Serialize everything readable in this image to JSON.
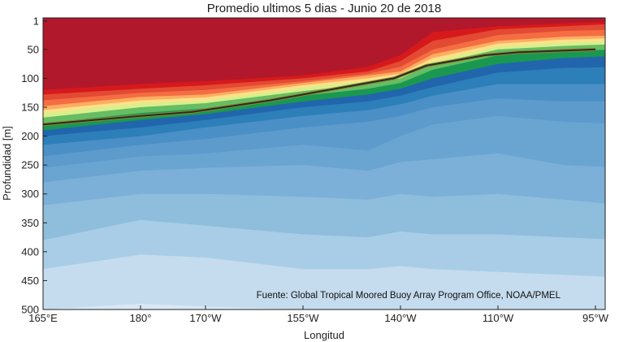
{
  "chart_data": {
    "type": "heatmap",
    "title": "Promedio ultimos 5 dias - Junio 20 de 2018",
    "xlabel": "Longitud",
    "ylabel": "Profundidad [m]",
    "source_note": "Fuente: Global Tropical Moored Buoy Array Program Office, NOAA/PMEL",
    "x_ticks": [
      {
        "value": 165,
        "label": "165°E"
      },
      {
        "value": 180,
        "label": "180°"
      },
      {
        "value": 190,
        "label": "170°W"
      },
      {
        "value": 205,
        "label": "155°W"
      },
      {
        "value": 220,
        "label": "140°W"
      },
      {
        "value": 235,
        "label": "110°W"
      },
      {
        "value": 250,
        "label": "95°W"
      }
    ],
    "y_ticks": [
      1,
      50,
      100,
      150,
      200,
      250,
      300,
      350,
      400,
      450,
      500
    ],
    "xlim": [
      165,
      255
    ],
    "ylim": [
      500,
      1
    ],
    "grid": false,
    "contour_levels": [
      {
        "min_depth_m": 0,
        "color": "#b2182b"
      },
      {
        "min_depth_m": 0,
        "color": "#d7191c"
      },
      {
        "min_depth_m": 0,
        "color": "#e34a33"
      },
      {
        "min_depth_m": 0,
        "color": "#f46d43"
      },
      {
        "min_depth_m": 0,
        "color": "#fdae61"
      },
      {
        "min_depth_m": 0,
        "color": "#fee08b"
      },
      {
        "min_depth_m": 0,
        "color": "#d9ef8b"
      },
      {
        "min_depth_m": 0,
        "color": "#66bd63"
      },
      {
        "min_depth_m": 0,
        "color": "#1a9850"
      },
      {
        "min_depth_m": 0,
        "color": "#2166ac"
      },
      {
        "min_depth_m": 0,
        "color": "#2c7fb8"
      },
      {
        "min_depth_m": 0,
        "color": "#4b8fc7"
      },
      {
        "min_depth_m": 0,
        "color": "#6aa5d2"
      },
      {
        "min_depth_m": 0,
        "color": "#8fbddc"
      },
      {
        "min_depth_m": 0,
        "color": "#a9cde6"
      },
      {
        "min_depth_m": 0,
        "color": "#c5dcee"
      },
      {
        "min_depth_m": 0,
        "color": "#d9e8f5"
      }
    ],
    "thermocline_line": {
      "x": [
        165,
        180,
        188,
        200,
        210,
        219,
        224,
        233,
        238,
        250
      ],
      "depth_m": [
        180,
        165,
        158,
        138,
        118,
        100,
        78,
        60,
        55,
        50
      ],
      "color": "#2b2b2b"
    },
    "bands": [
      {
        "color": "#b2182b",
        "x": [
          165,
          180,
          190,
          205,
          215,
          220,
          225,
          235,
          245,
          255
        ],
        "depth_m": [
          120,
          110,
          105,
          95,
          80,
          60,
          20,
          10,
          5,
          1
        ]
      },
      {
        "color": "#d7191c",
        "x": [
          165,
          180,
          190,
          205,
          215,
          220,
          225,
          235,
          245,
          255
        ],
        "depth_m": [
          128,
          118,
          112,
          100,
          88,
          70,
          35,
          15,
          10,
          5
        ]
      },
      {
        "color": "#e34a33",
        "x": [
          165,
          180,
          190,
          205,
          215,
          220,
          225,
          235,
          245,
          255
        ],
        "depth_m": [
          138,
          125,
          120,
          105,
          92,
          80,
          50,
          25,
          18,
          15
        ]
      },
      {
        "color": "#f46d43",
        "x": [
          165,
          180,
          190,
          205,
          215,
          220,
          225,
          235,
          245,
          255
        ],
        "depth_m": [
          148,
          132,
          128,
          108,
          95,
          88,
          58,
          35,
          28,
          25
        ]
      },
      {
        "color": "#fdae61",
        "x": [
          165,
          180,
          190,
          205,
          215,
          220,
          225,
          235,
          245,
          255
        ],
        "depth_m": [
          155,
          138,
          133,
          112,
          100,
          92,
          65,
          40,
          33,
          30
        ]
      },
      {
        "color": "#fee08b",
        "x": [
          165,
          180,
          190,
          205,
          215,
          220,
          225,
          235,
          245,
          255
        ],
        "depth_m": [
          160,
          143,
          138,
          116,
          104,
          96,
          70,
          45,
          38,
          35
        ]
      },
      {
        "color": "#d9ef8b",
        "x": [
          165,
          180,
          190,
          205,
          215,
          220,
          225,
          235,
          245,
          255
        ],
        "depth_m": [
          168,
          150,
          143,
          122,
          110,
          100,
          75,
          50,
          44,
          40
        ]
      },
      {
        "color": "#66bd63",
        "x": [
          165,
          180,
          190,
          205,
          215,
          220,
          225,
          235,
          245,
          255
        ],
        "depth_m": [
          178,
          160,
          152,
          130,
          118,
          108,
          85,
          60,
          52,
          50
        ]
      },
      {
        "color": "#1a9850",
        "x": [
          165,
          180,
          190,
          205,
          215,
          220,
          225,
          235,
          245,
          255
        ],
        "depth_m": [
          190,
          172,
          162,
          140,
          128,
          118,
          100,
          75,
          65,
          60
        ]
      },
      {
        "color": "#2166ac",
        "x": [
          165,
          180,
          190,
          205,
          215,
          220,
          225,
          235,
          245,
          255
        ],
        "depth_m": [
          200,
          185,
          172,
          150,
          140,
          130,
          115,
          90,
          82,
          80
        ]
      },
      {
        "color": "#2c7fb8",
        "x": [
          165,
          180,
          190,
          205,
          215,
          220,
          225,
          235,
          245,
          255
        ],
        "depth_m": [
          215,
          200,
          185,
          165,
          155,
          145,
          130,
          110,
          110,
          110
        ]
      },
      {
        "color": "#4b8fc7",
        "x": [
          165,
          180,
          190,
          205,
          215,
          220,
          225,
          235,
          245,
          255
        ],
        "depth_m": [
          235,
          215,
          205,
          185,
          175,
          165,
          150,
          135,
          140,
          140
        ]
      },
      {
        "color": "#5d9bcd",
        "x": [
          165,
          180,
          190,
          205,
          215,
          220,
          225,
          235,
          245,
          255
        ],
        "depth_m": [
          255,
          235,
          230,
          215,
          225,
          200,
          180,
          165,
          175,
          180
        ]
      },
      {
        "color": "#6aa5d2",
        "x": [
          165,
          180,
          190,
          205,
          215,
          220,
          225,
          235,
          245,
          255
        ],
        "depth_m": [
          280,
          260,
          255,
          250,
          260,
          245,
          240,
          230,
          250,
          255
        ]
      },
      {
        "color": "#7cb0d8",
        "x": [
          165,
          180,
          190,
          205,
          215,
          220,
          225,
          235,
          245,
          255
        ],
        "depth_m": [
          320,
          300,
          300,
          305,
          310,
          300,
          305,
          300,
          310,
          320
        ]
      },
      {
        "color": "#8fbddc",
        "x": [
          165,
          180,
          190,
          205,
          215,
          220,
          225,
          235,
          245,
          255
        ],
        "depth_m": [
          380,
          345,
          355,
          370,
          375,
          365,
          370,
          370,
          375,
          380
        ]
      },
      {
        "color": "#a9cde6",
        "x": [
          165,
          180,
          190,
          205,
          215,
          220,
          225,
          235,
          245,
          255
        ],
        "depth_m": [
          430,
          405,
          410,
          430,
          430,
          425,
          430,
          435,
          440,
          445
        ]
      },
      {
        "color": "#c5dcee",
        "x": [
          165,
          180,
          190,
          205,
          215,
          220,
          225,
          235,
          245,
          255
        ],
        "depth_m": [
          500,
          490,
          495,
          500,
          500,
          500,
          500,
          500,
          500,
          500
        ]
      }
    ]
  }
}
